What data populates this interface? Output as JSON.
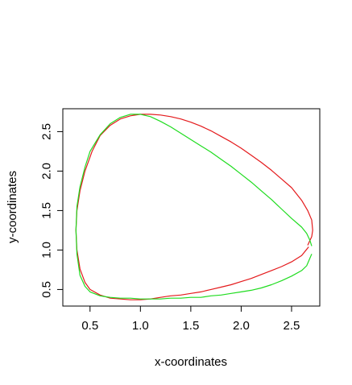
{
  "chart_data": {
    "type": "line",
    "title": "",
    "xlabel": "x-coordinates",
    "ylabel": "y-coordinates",
    "xlim": [
      0.23,
      2.78
    ],
    "ylim": [
      0.29,
      2.79
    ],
    "xticks": [
      0.5,
      1.0,
      1.5,
      2.0,
      2.5
    ],
    "yticks": [
      0.5,
      1.0,
      1.5,
      2.0,
      2.5
    ],
    "xtick_labels": [
      "0.5",
      "1.0",
      "1.5",
      "2.0",
      "2.5"
    ],
    "ytick_labels": [
      "0.5",
      "1.0",
      "1.5",
      "2.0",
      "2.5"
    ],
    "grid": false,
    "series": [
      {
        "color": "#e41a1c",
        "x": [
          2.67,
          2.6,
          2.5,
          2.4,
          2.3,
          2.2,
          2.1,
          2.0,
          1.9,
          1.8,
          1.7,
          1.6,
          1.5,
          1.4,
          1.3,
          1.2,
          1.1,
          1.0,
          0.9,
          0.8,
          0.7,
          0.6,
          0.5,
          0.45,
          0.4,
          0.37,
          0.36,
          0.37,
          0.4,
          0.45,
          0.52,
          0.6,
          0.7,
          0.8,
          0.9,
          1.0,
          1.1,
          1.2,
          1.3,
          1.4,
          1.5,
          1.6,
          1.7,
          1.8,
          1.9,
          2.0,
          2.1,
          2.2,
          2.3,
          2.4,
          2.5,
          2.6,
          2.66,
          2.7,
          2.71,
          2.7,
          2.66
        ],
        "y": [
          1.04,
          0.93,
          0.85,
          0.79,
          0.74,
          0.69,
          0.64,
          0.6,
          0.56,
          0.53,
          0.5,
          0.47,
          0.45,
          0.43,
          0.42,
          0.4,
          0.38,
          0.37,
          0.37,
          0.38,
          0.39,
          0.43,
          0.5,
          0.59,
          0.76,
          1.0,
          1.25,
          1.5,
          1.75,
          2.0,
          2.25,
          2.45,
          2.58,
          2.66,
          2.7,
          2.72,
          2.72,
          2.71,
          2.69,
          2.66,
          2.62,
          2.57,
          2.51,
          2.44,
          2.37,
          2.29,
          2.2,
          2.11,
          2.01,
          1.9,
          1.79,
          1.63,
          1.5,
          1.38,
          1.25,
          1.17,
          1.06
        ]
      },
      {
        "color": "#1fdc1f",
        "x": [
          2.7,
          2.65,
          2.6,
          2.5,
          2.4,
          2.3,
          2.2,
          2.1,
          2.0,
          1.9,
          1.8,
          1.7,
          1.6,
          1.5,
          1.4,
          1.3,
          1.2,
          1.1,
          1.0,
          0.9,
          0.8,
          0.7,
          0.6,
          0.5,
          0.45,
          0.4,
          0.37,
          0.36,
          0.37,
          0.4,
          0.45,
          0.5,
          0.6,
          0.7,
          0.8,
          0.9,
          1.0,
          1.1,
          1.2,
          1.3,
          1.4,
          1.5,
          1.6,
          1.7,
          1.8,
          1.9,
          2.0,
          2.1,
          2.2,
          2.3,
          2.4,
          2.5,
          2.6,
          2.65,
          2.68,
          2.7
        ],
        "y": [
          0.95,
          0.8,
          0.74,
          0.67,
          0.61,
          0.56,
          0.52,
          0.49,
          0.47,
          0.45,
          0.43,
          0.42,
          0.4,
          0.4,
          0.39,
          0.39,
          0.38,
          0.38,
          0.38,
          0.39,
          0.39,
          0.4,
          0.42,
          0.47,
          0.54,
          0.68,
          0.95,
          1.25,
          1.55,
          1.8,
          2.05,
          2.25,
          2.46,
          2.6,
          2.68,
          2.72,
          2.72,
          2.69,
          2.63,
          2.56,
          2.48,
          2.4,
          2.32,
          2.24,
          2.15,
          2.06,
          1.96,
          1.86,
          1.75,
          1.64,
          1.52,
          1.4,
          1.29,
          1.21,
          1.13,
          1.05
        ]
      }
    ]
  }
}
